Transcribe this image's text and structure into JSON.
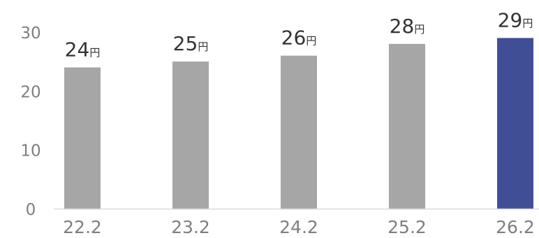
{
  "chart_data": {
    "type": "bar",
    "title": "",
    "xlabel": "",
    "ylabel": "",
    "categories": [
      "22.2",
      "23.2",
      "24.2",
      "25.2",
      "26.2"
    ],
    "values": [
      24,
      25,
      26,
      28,
      29
    ],
    "value_unit": "円",
    "ylim": [
      0,
      30
    ],
    "yticks": [
      "0",
      "10",
      "20",
      "30"
    ],
    "grid": false,
    "legend": "none",
    "colors": {
      "bar_default": "#a6a6a6",
      "bar_highlight": "#404e96",
      "axis_line": "#d9d9d9",
      "tick_text": "#7f7f7f",
      "label_text": "#333333"
    },
    "highlight_index": 4
  }
}
